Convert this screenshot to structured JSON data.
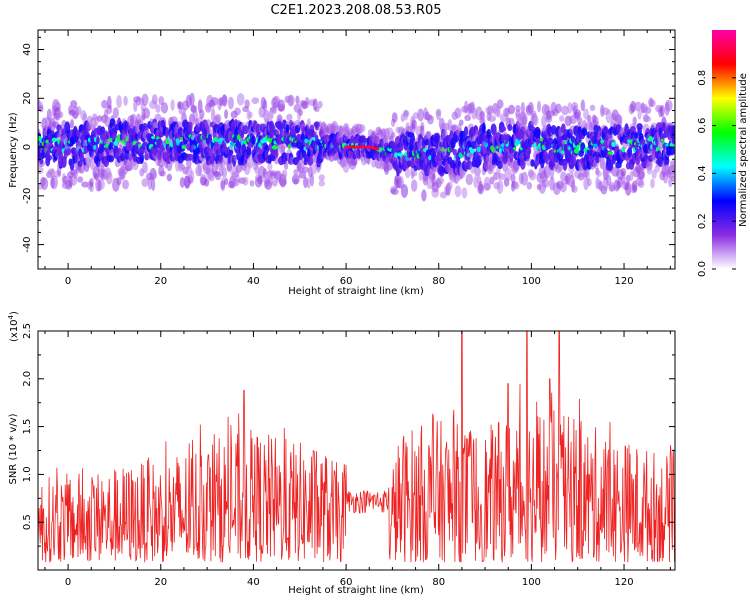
{
  "chart_data": [
    {
      "type": "heatmap",
      "title": "C2E1.2023.208.08.53.R05",
      "xlabel": "Height of straight line (km)",
      "ylabel": "Frequency (Hz)",
      "xlim": [
        -6.5,
        131
      ],
      "ylim": [
        -50,
        48
      ],
      "xticks": [
        0,
        20,
        40,
        60,
        80,
        100,
        120
      ],
      "yticks": [
        -40,
        -20,
        0,
        20,
        40
      ],
      "colorbar": {
        "label": "Normalized spectral amplitude",
        "range": [
          0,
          1
        ],
        "ticks": [
          "0.0",
          "0.2",
          "0.4",
          "0.6",
          "0.8"
        ],
        "colors": [
          "#ffffff",
          "#8a2be2",
          "#0000ff",
          "#00ffff",
          "#00ff00",
          "#ffff00",
          "#ff0000",
          "#ff00aa"
        ]
      },
      "band_center_hz": [
        [
          -6,
          1
        ],
        [
          0,
          0
        ],
        [
          10,
          2
        ],
        [
          20,
          2
        ],
        [
          30,
          2
        ],
        [
          40,
          2
        ],
        [
          50,
          2
        ],
        [
          55,
          1
        ],
        [
          60,
          0
        ],
        [
          65,
          0
        ],
        [
          70,
          -2
        ],
        [
          80,
          -3
        ],
        [
          90,
          0
        ],
        [
          100,
          1
        ],
        [
          110,
          0
        ],
        [
          120,
          0
        ],
        [
          130,
          2
        ]
      ],
      "band_halfwidth_hz": 8,
      "peak_segment_km": [
        60,
        67
      ]
    },
    {
      "type": "line",
      "xlabel": "Height of straight line (km)",
      "ylabel": "SNR (10 * v/v)",
      "y_multiplier": "(x10",
      "y_multiplier_exp": "4",
      "y_multiplier_close": ")",
      "xlim": [
        -6.5,
        131
      ],
      "ylim": [
        0,
        2.5
      ],
      "xticks": [
        0,
        20,
        40,
        60,
        80,
        100,
        120
      ],
      "yticks": [
        "0.5",
        "1.0",
        "1.5",
        "2.0",
        "2.5"
      ],
      "line_color": "#ee2222",
      "envelope": [
        [
          -6,
          0.9
        ],
        [
          10,
          1.0
        ],
        [
          20,
          1.1
        ],
        [
          30,
          1.3
        ],
        [
          40,
          1.4
        ],
        [
          55,
          1.2
        ],
        [
          60,
          0.95
        ],
        [
          65,
          0.9
        ],
        [
          69,
          0.9
        ],
        [
          72,
          1.4
        ],
        [
          80,
          1.5
        ],
        [
          90,
          1.4
        ],
        [
          100,
          1.7
        ],
        [
          110,
          1.5
        ],
        [
          120,
          1.3
        ],
        [
          131,
          1.1
        ]
      ],
      "peaks": [
        [
          85,
          2.5
        ],
        [
          99,
          2.5
        ],
        [
          106,
          2.5
        ],
        [
          38,
          1.88
        ],
        [
          104,
          2.0
        ],
        [
          95,
          1.95
        ]
      ]
    }
  ]
}
